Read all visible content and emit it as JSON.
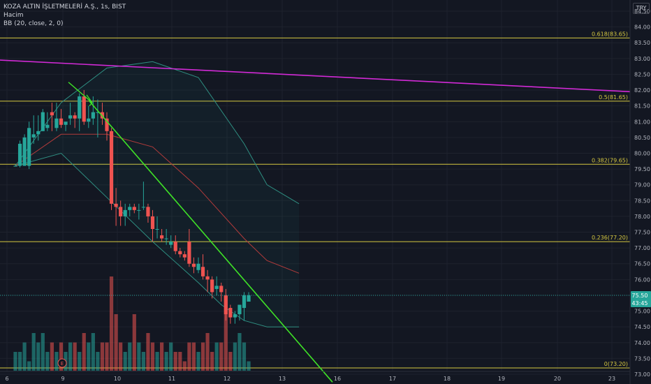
{
  "legend": {
    "title": "KOZA ALTIN İŞLETMELERİ A.Ş., 1s, BIST",
    "volume": "Hacim",
    "bb": "BB (20, close, 2, 0)"
  },
  "currency": "TRY",
  "colors": {
    "background": "#131722",
    "up": "#26a69a",
    "down": "#ef5350",
    "fib": "#d6c840",
    "trend_magenta": "#d22ad6",
    "trend_green": "#3fe327",
    "bb_band": "#2f8f82",
    "bb_basis": "#b23b3b"
  },
  "chart_data": {
    "type": "candlestick",
    "x_tick_labels": [
      "6",
      "9",
      "10",
      "11",
      "12",
      "13",
      "16",
      "17",
      "18",
      "19",
      "20",
      "23"
    ],
    "y_tick_labels": [
      "84.50",
      "84.00",
      "83.50",
      "83.00",
      "82.50",
      "82.00",
      "81.50",
      "81.00",
      "80.50",
      "80.00",
      "79.50",
      "79.00",
      "78.50",
      "78.00",
      "77.50",
      "77.00",
      "76.50",
      "76.00",
      "75.50",
      "75.00",
      "74.50",
      "74.00",
      "73.50",
      "73.00"
    ],
    "ylim": [
      72.85,
      84.65
    ],
    "candles": [
      [
        79.6,
        79.65,
        79.6,
        79.6
      ],
      [
        79.6,
        80.4,
        79.55,
        80.3
      ],
      [
        79.6,
        80.6,
        79.6,
        80.5
      ],
      [
        79.6,
        81.0,
        79.5,
        80.8
      ],
      [
        80.5,
        81.2,
        80.3,
        80.6
      ],
      [
        80.6,
        81.2,
        80.4,
        80.7
      ],
      [
        80.7,
        81.4,
        80.7,
        81.3
      ],
      [
        80.8,
        81.3,
        80.7,
        80.9
      ],
      [
        81.3,
        81.6,
        80.7,
        81.2
      ],
      [
        80.8,
        81.6,
        80.7,
        81.1
      ],
      [
        81.1,
        81.4,
        80.8,
        80.9
      ],
      [
        80.9,
        81.0,
        80.7,
        81.0
      ],
      [
        81.1,
        81.6,
        80.9,
        81.2
      ],
      [
        81.2,
        81.3,
        80.8,
        81.1
      ],
      [
        81.1,
        81.9,
        80.7,
        81.8
      ],
      [
        81.8,
        82.0,
        80.9,
        81.0
      ],
      [
        81.0,
        81.5,
        80.8,
        81.1
      ],
      [
        81.1,
        81.8,
        80.9,
        81.3
      ],
      [
        81.3,
        81.7,
        80.5,
        81.3
      ],
      [
        81.3,
        81.6,
        80.9,
        81.1
      ],
      [
        81.1,
        81.3,
        80.4,
        80.7
      ],
      [
        80.7,
        80.8,
        78.2,
        78.4
      ],
      [
        78.4,
        78.9,
        77.7,
        78.3
      ],
      [
        78.3,
        78.5,
        77.7,
        78.0
      ],
      [
        78.0,
        78.4,
        77.7,
        78.2
      ],
      [
        78.2,
        78.4,
        78.0,
        78.3
      ],
      [
        78.3,
        78.4,
        78.1,
        78.2
      ],
      [
        78.2,
        78.4,
        77.9,
        78.2
      ],
      [
        78.3,
        79.1,
        78.2,
        78.3
      ],
      [
        78.3,
        78.4,
        77.8,
        78.0
      ],
      [
        78.0,
        78.2,
        77.2,
        77.6
      ],
      [
        77.6,
        78.0,
        77.3,
        77.6
      ],
      [
        77.4,
        77.6,
        77.2,
        77.3
      ],
      [
        77.3,
        77.6,
        77.1,
        77.3
      ],
      [
        77.1,
        77.4,
        77.0,
        77.2
      ],
      [
        77.2,
        77.4,
        76.8,
        76.9
      ],
      [
        76.9,
        77.0,
        76.7,
        76.8
      ],
      [
        76.8,
        76.9,
        76.6,
        76.7
      ],
      [
        77.2,
        77.6,
        76.4,
        76.5
      ],
      [
        76.5,
        76.7,
        76.2,
        76.4
      ],
      [
        76.3,
        76.7,
        76.2,
        76.5
      ],
      [
        76.4,
        76.8,
        76.0,
        76.1
      ],
      [
        76.1,
        76.3,
        75.6,
        76.0
      ],
      [
        76.0,
        76.1,
        75.4,
        75.6
      ],
      [
        75.7,
        76.1,
        75.5,
        75.8
      ],
      [
        75.8,
        75.9,
        75.3,
        75.6
      ],
      [
        75.5,
        75.7,
        74.7,
        74.9
      ],
      [
        75.1,
        75.2,
        74.6,
        74.8
      ],
      [
        74.8,
        75.0,
        74.6,
        74.9
      ],
      [
        74.9,
        75.2,
        74.7,
        75.2
      ],
      [
        75.1,
        75.6,
        74.7,
        75.5
      ],
      [
        75.3,
        75.6,
        75.3,
        75.5
      ]
    ],
    "bb_upper": [
      [
        0,
        79.6
      ],
      [
        10,
        81.6
      ],
      [
        20,
        82.7
      ],
      [
        30,
        82.9
      ],
      [
        40,
        82.4
      ],
      [
        50,
        80.3
      ],
      [
        55,
        79.0
      ],
      [
        62,
        78.4
      ]
    ],
    "bb_lower": [
      [
        0,
        79.6
      ],
      [
        10,
        80.0
      ],
      [
        20,
        78.6
      ],
      [
        30,
        77.2
      ],
      [
        40,
        75.9
      ],
      [
        45,
        75.2
      ],
      [
        50,
        74.7
      ],
      [
        55,
        74.5
      ],
      [
        62,
        74.5
      ]
    ],
    "bb_basis": [
      [
        0,
        79.6
      ],
      [
        10,
        80.6
      ],
      [
        20,
        80.6
      ],
      [
        30,
        80.2
      ],
      [
        40,
        78.9
      ],
      [
        50,
        77.3
      ],
      [
        55,
        76.6
      ],
      [
        62,
        76.2
      ]
    ],
    "volumes": [
      2,
      2,
      3,
      1,
      4,
      3,
      4,
      2,
      3,
      2,
      3,
      2,
      3,
      3,
      2,
      4,
      3,
      4,
      2,
      3,
      3,
      10,
      6,
      3,
      2,
      3,
      6,
      3,
      2,
      4,
      3,
      2,
      3,
      2,
      3,
      2,
      2,
      1,
      3,
      3,
      2,
      3,
      4,
      2,
      3,
      3,
      8,
      2,
      3,
      4,
      3,
      1
    ],
    "fib_levels": [
      {
        "label": "0.618(83.65)",
        "value": 83.65
      },
      {
        "label": "0.5(81.65)",
        "value": 81.65
      },
      {
        "label": "0.382(79.65)",
        "value": 79.65
      },
      {
        "label": "0.236(77.20)",
        "value": 77.2
      },
      {
        "label": "0(73.20)",
        "value": 73.2
      }
    ],
    "current_price": "75.50",
    "countdown": "43:45",
    "current_value": 75.5
  }
}
